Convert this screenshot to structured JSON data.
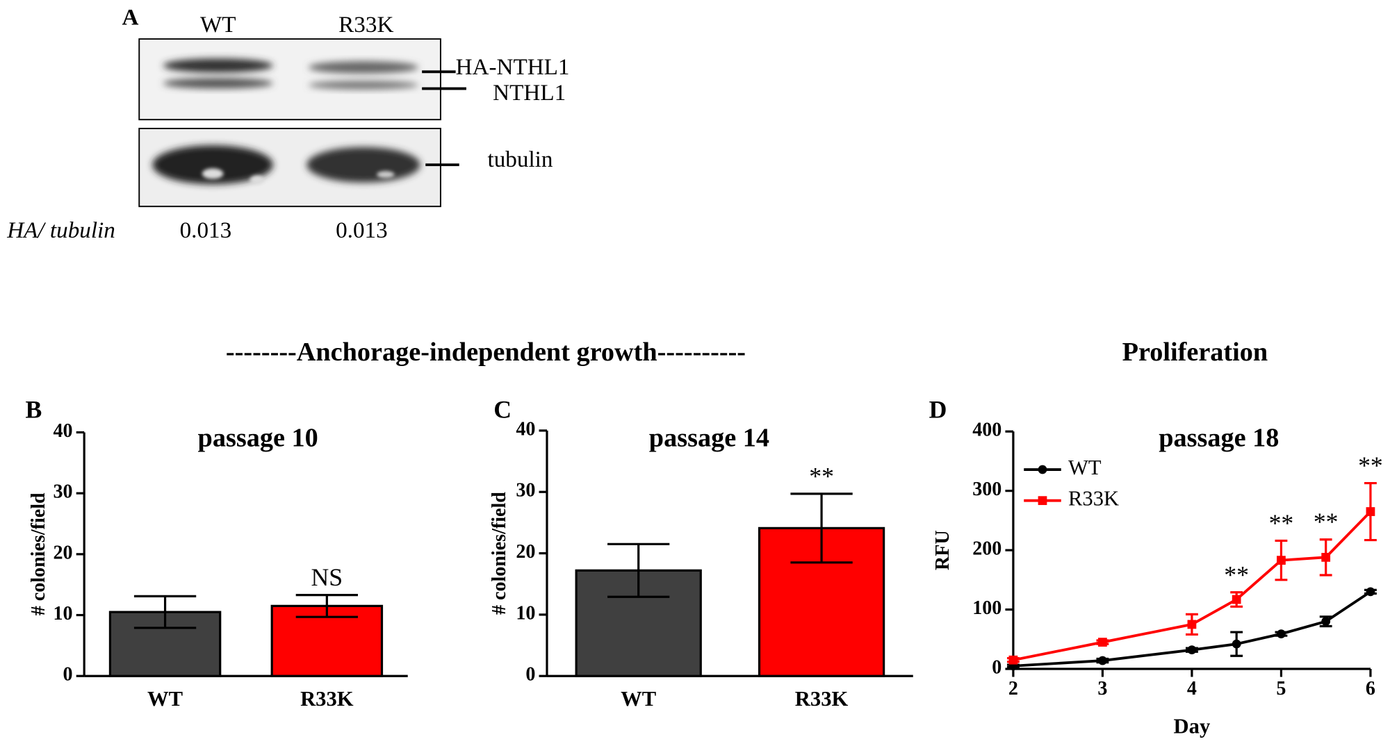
{
  "panel_a": {
    "label": "A",
    "lanes": [
      "WT",
      "R33K"
    ],
    "bands": [
      "HA-NTHL1",
      "NTHL1",
      "tubulin"
    ],
    "ratio_label": "HA/ tubulin",
    "ratios": [
      "0.013",
      "0.013"
    ]
  },
  "section_titles": [
    "--------Anchorage-independent  growth----------",
    "Proliferation"
  ],
  "chart_data": [
    {
      "type": "bar",
      "panel": "B",
      "title": "passage 10",
      "y_label": "# colonies/field",
      "categories": [
        "WT",
        "R33K"
      ],
      "values": [
        10.5,
        11.5
      ],
      "errors": [
        2.6,
        1.8
      ],
      "colors": [
        "#404040",
        "#ff0000"
      ],
      "significance": [
        null,
        "NS"
      ],
      "ylim": [
        0,
        40
      ],
      "yticks": [
        0,
        10,
        20,
        30,
        40
      ]
    },
    {
      "type": "bar",
      "panel": "C",
      "title": "passage 14",
      "y_label": "# colonies/field",
      "categories": [
        "WT",
        "R33K"
      ],
      "values": [
        17.2,
        24.1
      ],
      "errors": [
        4.3,
        5.6
      ],
      "colors": [
        "#404040",
        "#ff0000"
      ],
      "significance": [
        null,
        "**"
      ],
      "ylim": [
        0,
        40
      ],
      "yticks": [
        0,
        10,
        20,
        30,
        40
      ]
    },
    {
      "type": "line",
      "panel": "D",
      "title": "passage 18",
      "x_label": "Day",
      "y_label": "RFU",
      "x": [
        2,
        3,
        4,
        4.5,
        5,
        5.5,
        6
      ],
      "series": [
        {
          "name": "WT",
          "color": "#000000",
          "marker": "circle",
          "values": [
            5,
            14,
            32,
            42,
            59,
            80,
            130
          ],
          "errors": [
            2,
            3,
            3,
            20,
            3,
            8,
            3
          ],
          "significance": [
            null,
            null,
            null,
            null,
            null,
            null,
            null
          ]
        },
        {
          "name": "R33K",
          "color": "#ff0000",
          "marker": "square",
          "values": [
            15,
            45,
            75,
            117,
            183,
            188,
            265
          ],
          "errors": [
            3,
            3,
            17,
            12,
            33,
            30,
            48
          ],
          "significance": [
            null,
            null,
            null,
            "**",
            "**",
            "**",
            "**"
          ]
        }
      ],
      "legend": "upper left",
      "xlim": [
        2,
        6
      ],
      "xticks": [
        2,
        3,
        4,
        5,
        6
      ],
      "ylim": [
        0,
        400
      ],
      "yticks": [
        0,
        100,
        200,
        300,
        400
      ]
    }
  ]
}
